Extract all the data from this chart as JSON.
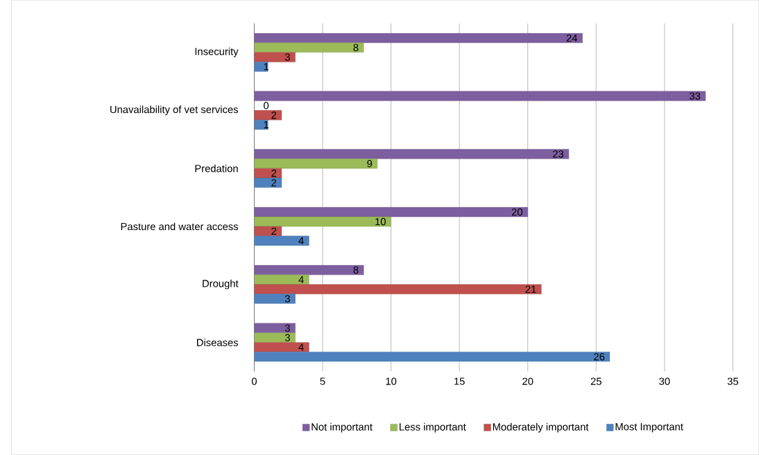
{
  "chart_data": {
    "type": "bar",
    "orientation": "horizontal",
    "categories": [
      "Insecurity",
      "Unavailability of vet services",
      "Predation",
      "Pasture and water access",
      "Drought",
      "Diseases"
    ],
    "series": [
      {
        "name": "Not important",
        "color": "#7d5fa0",
        "values": [
          24,
          33,
          23,
          20,
          8,
          3
        ]
      },
      {
        "name": "Less important",
        "color": "#9bbb59",
        "values": [
          8,
          0,
          9,
          10,
          4,
          3
        ]
      },
      {
        "name": "Moderately important",
        "color": "#c0504d",
        "values": [
          3,
          2,
          2,
          2,
          21,
          4
        ]
      },
      {
        "name": "Most Important",
        "color": "#4f81bd",
        "values": [
          1,
          1,
          2,
          4,
          3,
          26
        ]
      }
    ],
    "xlim": [
      0,
      35
    ],
    "xticks": [
      0,
      5,
      10,
      15,
      20,
      25,
      30,
      35
    ],
    "grid": "x",
    "legend": "bottom",
    "data_labels": true
  }
}
